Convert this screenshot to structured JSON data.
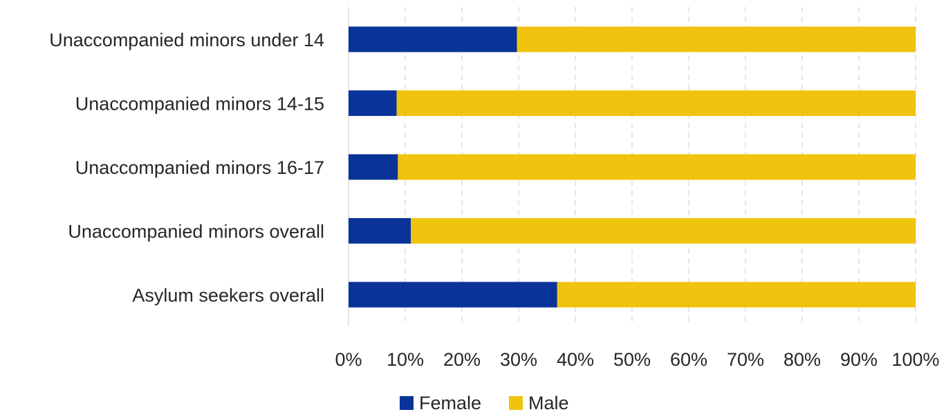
{
  "chart_data": {
    "type": "bar",
    "orientation": "horizontal",
    "stacked": "percent",
    "categories": [
      "Unaccompanied minors under 14",
      "Unaccompanied minors 14-15",
      "Unaccompanied minors 16-17",
      "Unaccompanied minors overall",
      "Asylum seekers overall"
    ],
    "series": [
      {
        "name": "Female",
        "color": "#0a3399",
        "values": [
          29.7,
          8.5,
          8.7,
          11.0,
          36.8
        ]
      },
      {
        "name": "Male",
        "color": "#f0c30f",
        "values": [
          70.3,
          91.5,
          91.3,
          89.0,
          63.2
        ]
      }
    ],
    "xlim": [
      0,
      100
    ],
    "x_ticks": [
      "0%",
      "10%",
      "20%",
      "30%",
      "40%",
      "50%",
      "60%",
      "70%",
      "80%",
      "90%",
      "100%"
    ],
    "grid": "vertical dashed",
    "legend": "bottom-center",
    "title": "",
    "xlabel": "",
    "ylabel": ""
  }
}
